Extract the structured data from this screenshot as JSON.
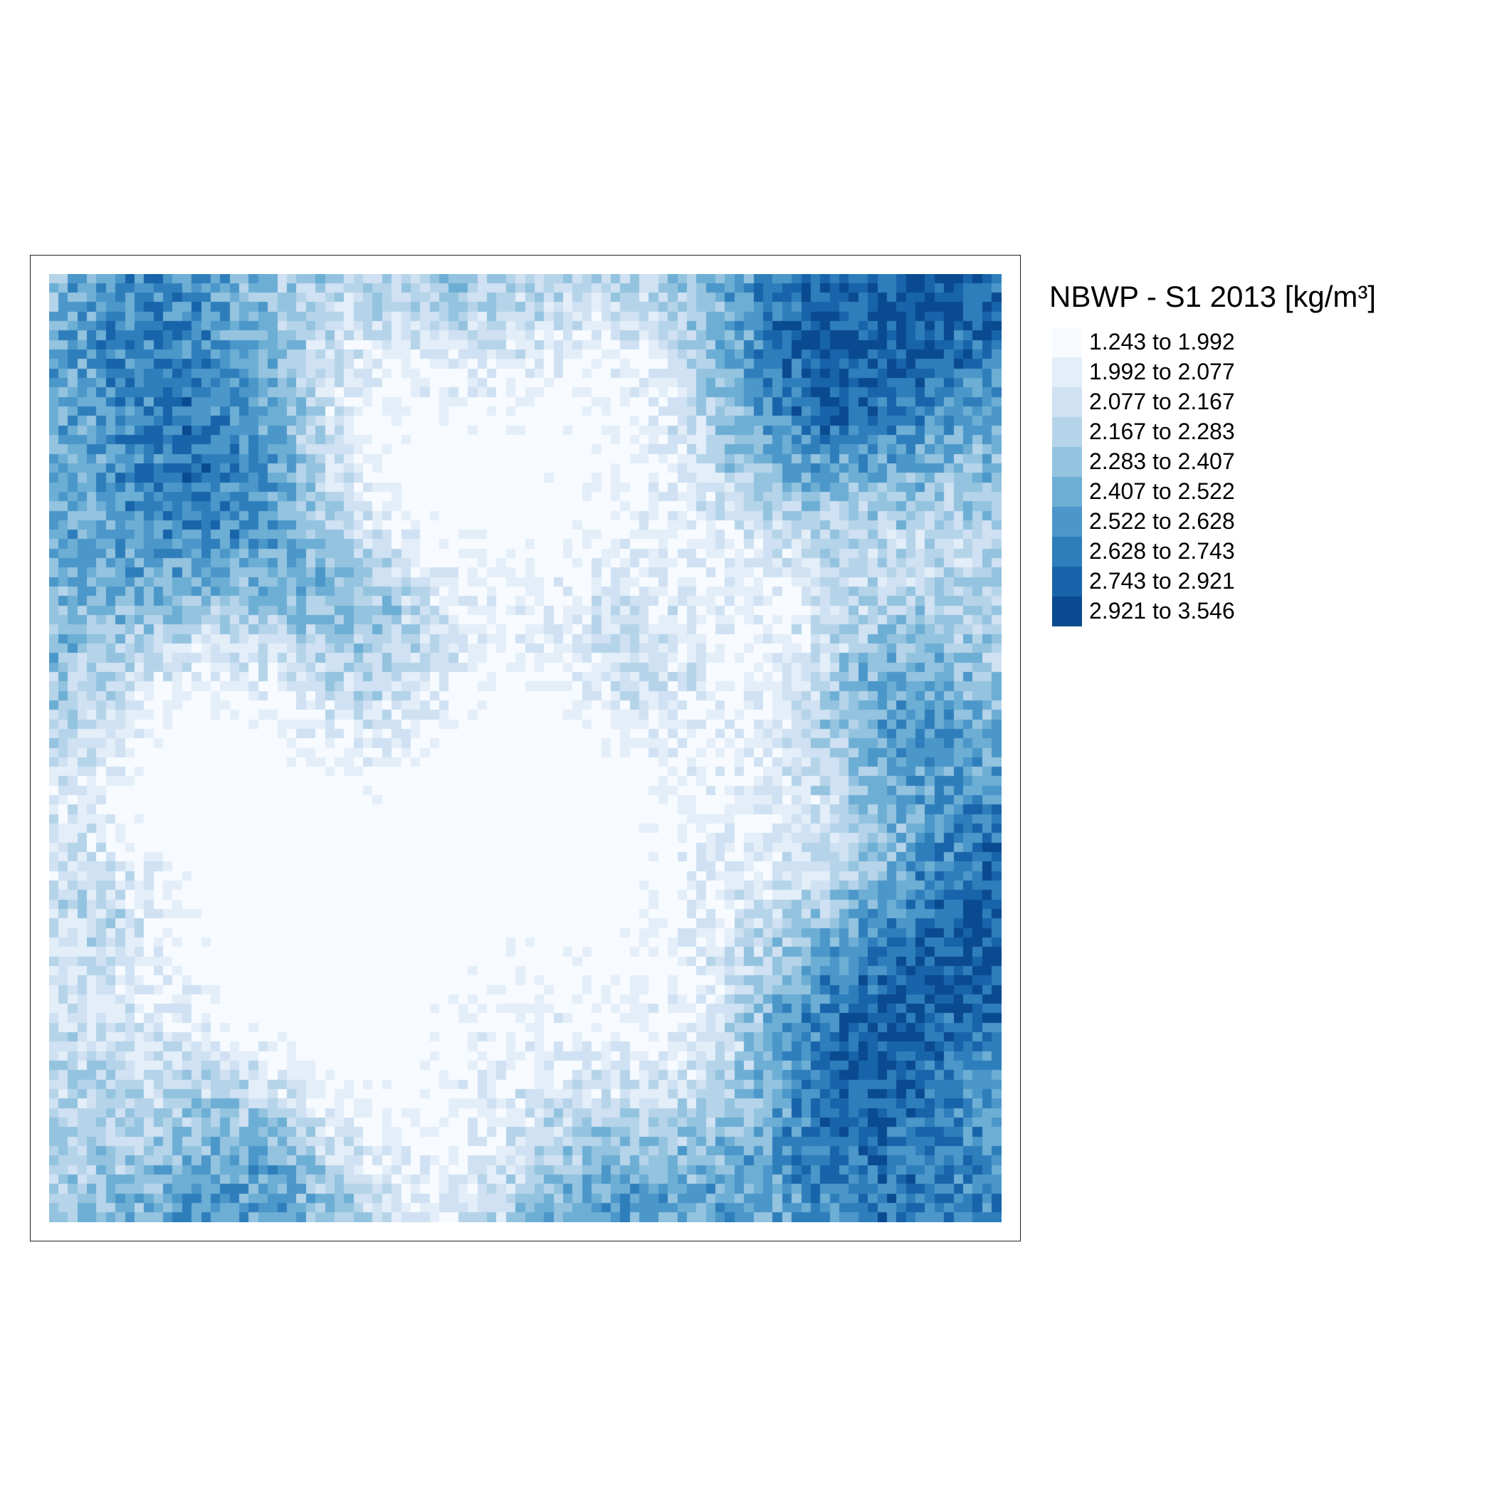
{
  "map": {
    "legend_title": "NBWP - S1 2013 [kg/m³]",
    "classes": [
      {
        "label": "1.243 to 1.992",
        "color": "#f7fbff"
      },
      {
        "label": "1.992 to 2.077",
        "color": "#e3eef9"
      },
      {
        "label": "2.077 to 2.167",
        "color": "#cfe1f2"
      },
      {
        "label": "2.167 to 2.283",
        "color": "#b5d4e9"
      },
      {
        "label": "2.283 to 2.407",
        "color": "#93c3df"
      },
      {
        "label": "2.407 to 2.522",
        "color": "#6daed5"
      },
      {
        "label": "2.522 to 2.628",
        "color": "#4b97c9"
      },
      {
        "label": "2.628 to 2.743",
        "color": "#2f7ebc"
      },
      {
        "label": "2.743 to 2.921",
        "color": "#1864aa"
      },
      {
        "label": "2.921 to 3.546",
        "color": "#0a4a90"
      }
    ]
  }
}
